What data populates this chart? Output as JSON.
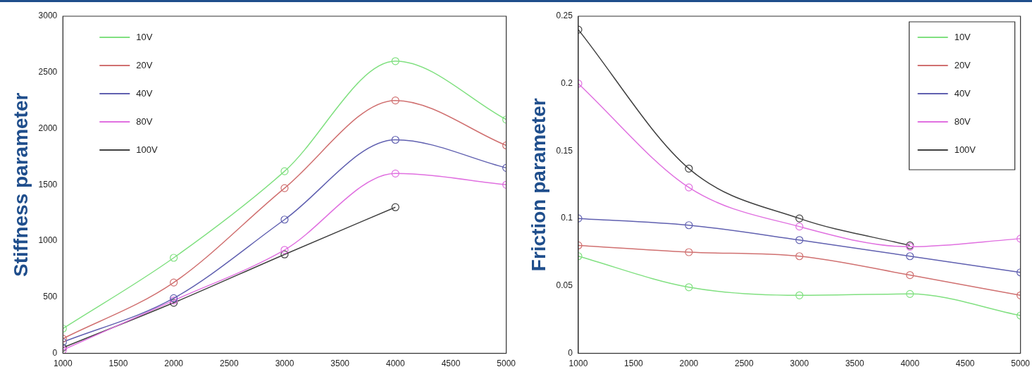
{
  "chart_data": [
    {
      "type": "line",
      "ylabel": "Stiffness parameter",
      "x": [
        1000,
        2000,
        3000,
        4000,
        5000
      ],
      "xlim": [
        1000,
        5000
      ],
      "xticks": [
        1000,
        1500,
        2000,
        2500,
        3000,
        3500,
        4000,
        4500,
        5000
      ],
      "ylim": [
        0,
        3000
      ],
      "yticks": [
        0,
        500,
        1000,
        1500,
        2000,
        2500,
        3000
      ],
      "grid": false,
      "legend": "top left",
      "marker": "circle",
      "line_style": "solid",
      "series": [
        {
          "name": "10V",
          "color": "#80e080",
          "values": [
            220,
            850,
            1620,
            2600,
            2080
          ]
        },
        {
          "name": "20V",
          "color": "#d07070",
          "values": [
            130,
            630,
            1470,
            2250,
            1850
          ]
        },
        {
          "name": "40V",
          "color": "#6060b0",
          "values": [
            100,
            490,
            1190,
            1900,
            1650
          ]
        },
        {
          "name": "80V",
          "color": "#e070e0",
          "values": [
            30,
            470,
            920,
            1600,
            1500
          ]
        },
        {
          "name": "100V",
          "color": "#404040",
          "values": [
            50,
            450,
            880,
            1300,
            null
          ]
        }
      ]
    },
    {
      "type": "line",
      "ylabel": "Friction parameter",
      "x": [
        1000,
        2000,
        3000,
        4000,
        5000
      ],
      "xlim": [
        1000,
        5000
      ],
      "xticks": [
        1000,
        1500,
        2000,
        2500,
        3000,
        3500,
        4000,
        4500,
        5000
      ],
      "ylim": [
        0,
        0.25
      ],
      "yticks": [
        0,
        0.05,
        0.1,
        0.15,
        0.2,
        0.25
      ],
      "grid": false,
      "legend": "top right",
      "marker": "circle",
      "line_style": "solid",
      "series": [
        {
          "name": "10V",
          "color": "#80e080",
          "values": [
            0.072,
            0.049,
            0.043,
            0.044,
            0.028
          ]
        },
        {
          "name": "20V",
          "color": "#d07070",
          "values": [
            0.08,
            0.075,
            0.072,
            0.058,
            0.043
          ]
        },
        {
          "name": "40V",
          "color": "#6060b0",
          "values": [
            0.1,
            0.095,
            0.084,
            0.072,
            0.06
          ]
        },
        {
          "name": "80V",
          "color": "#e070e0",
          "values": [
            0.2,
            0.123,
            0.094,
            0.079,
            0.085
          ]
        },
        {
          "name": "100V",
          "color": "#404040",
          "values": [
            0.24,
            0.137,
            0.1,
            0.08,
            null
          ]
        }
      ]
    }
  ]
}
